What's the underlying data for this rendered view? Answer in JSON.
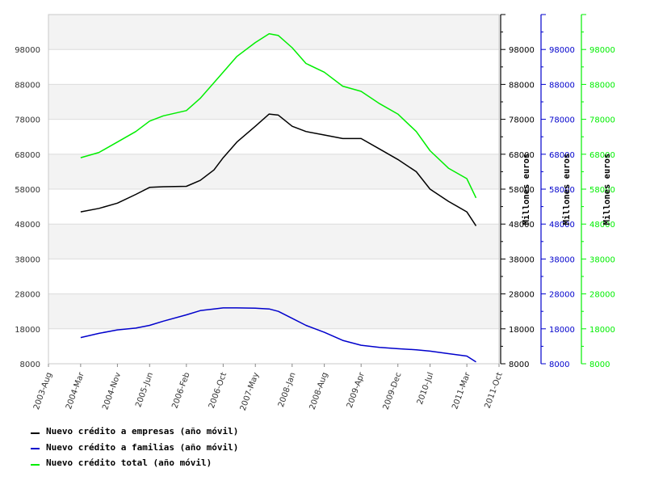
{
  "chart_data": {
    "type": "line",
    "title": "",
    "xlabel": "",
    "ylabel": "Millones euros",
    "x_ticks": [
      "2003-Aug",
      "2004-Mar",
      "2004-Nov",
      "2005-Jun",
      "2006-Feb",
      "2006-Oct",
      "2007-May",
      "2008-Jan",
      "2008-Aug",
      "2009-Apr",
      "2009-Dec",
      "2010-Jul",
      "2011-Mar",
      "2011-Oct"
    ],
    "y_ticks": [
      8000,
      18000,
      28000,
      38000,
      48000,
      58000,
      68000,
      78000,
      88000,
      98000
    ],
    "ylim": [
      8000,
      108000
    ],
    "grid": true,
    "legend_position": "bottom-left",
    "colors": {
      "empresas": "#000000",
      "familias": "#0000cc",
      "total": "#00ee00"
    },
    "axes": [
      {
        "side": "right",
        "color": "#000000",
        "label": "Millones euros"
      },
      {
        "side": "right",
        "color": "#0000cc",
        "label": "Millones euros"
      },
      {
        "side": "right",
        "color": "#00ee00",
        "label": "Millones euros"
      }
    ],
    "x": [
      "2004-Mar",
      "2004-Jul",
      "2004-Nov",
      "2005-Mar",
      "2005-Jun",
      "2005-Sep",
      "2006-Feb",
      "2006-May",
      "2006-Aug",
      "2006-Oct",
      "2007-Jan",
      "2007-May",
      "2007-Aug",
      "2007-Oct",
      "2008-Jan",
      "2008-Apr",
      "2008-Aug",
      "2008-Dec",
      "2009-Apr",
      "2009-Aug",
      "2009-Dec",
      "2010-Apr",
      "2010-Jul",
      "2010-Nov",
      "2011-Mar",
      "2011-May"
    ],
    "series": [
      {
        "name": "Nuevo crédito a empresas (año móvil)",
        "values": [
          51500,
          52500,
          54000,
          56500,
          58500,
          58700,
          58800,
          60500,
          63500,
          67000,
          71500,
          76000,
          79500,
          79200,
          76000,
          74500,
          73500,
          72500,
          72500,
          69500,
          66500,
          63000,
          58000,
          54500,
          51500,
          47500
        ]
      },
      {
        "name": "Nuevo crédito a familias (año móvil)",
        "values": [
          15500,
          16700,
          17700,
          18200,
          19000,
          20200,
          22000,
          23200,
          23700,
          24000,
          24000,
          23900,
          23700,
          23000,
          21000,
          19000,
          17000,
          14700,
          13300,
          12700,
          12300,
          12000,
          11600,
          10900,
          10200,
          8500
        ]
      },
      {
        "name": "Nuevo crédito total (año móvil)",
        "values": [
          67000,
          68500,
          71500,
          74500,
          77500,
          79000,
          80500,
          84000,
          88500,
          91500,
          96000,
          100000,
          102500,
          102000,
          98500,
          94000,
          91500,
          87500,
          86000,
          82500,
          79500,
          74500,
          69000,
          64000,
          61000,
          55500
        ]
      }
    ]
  }
}
